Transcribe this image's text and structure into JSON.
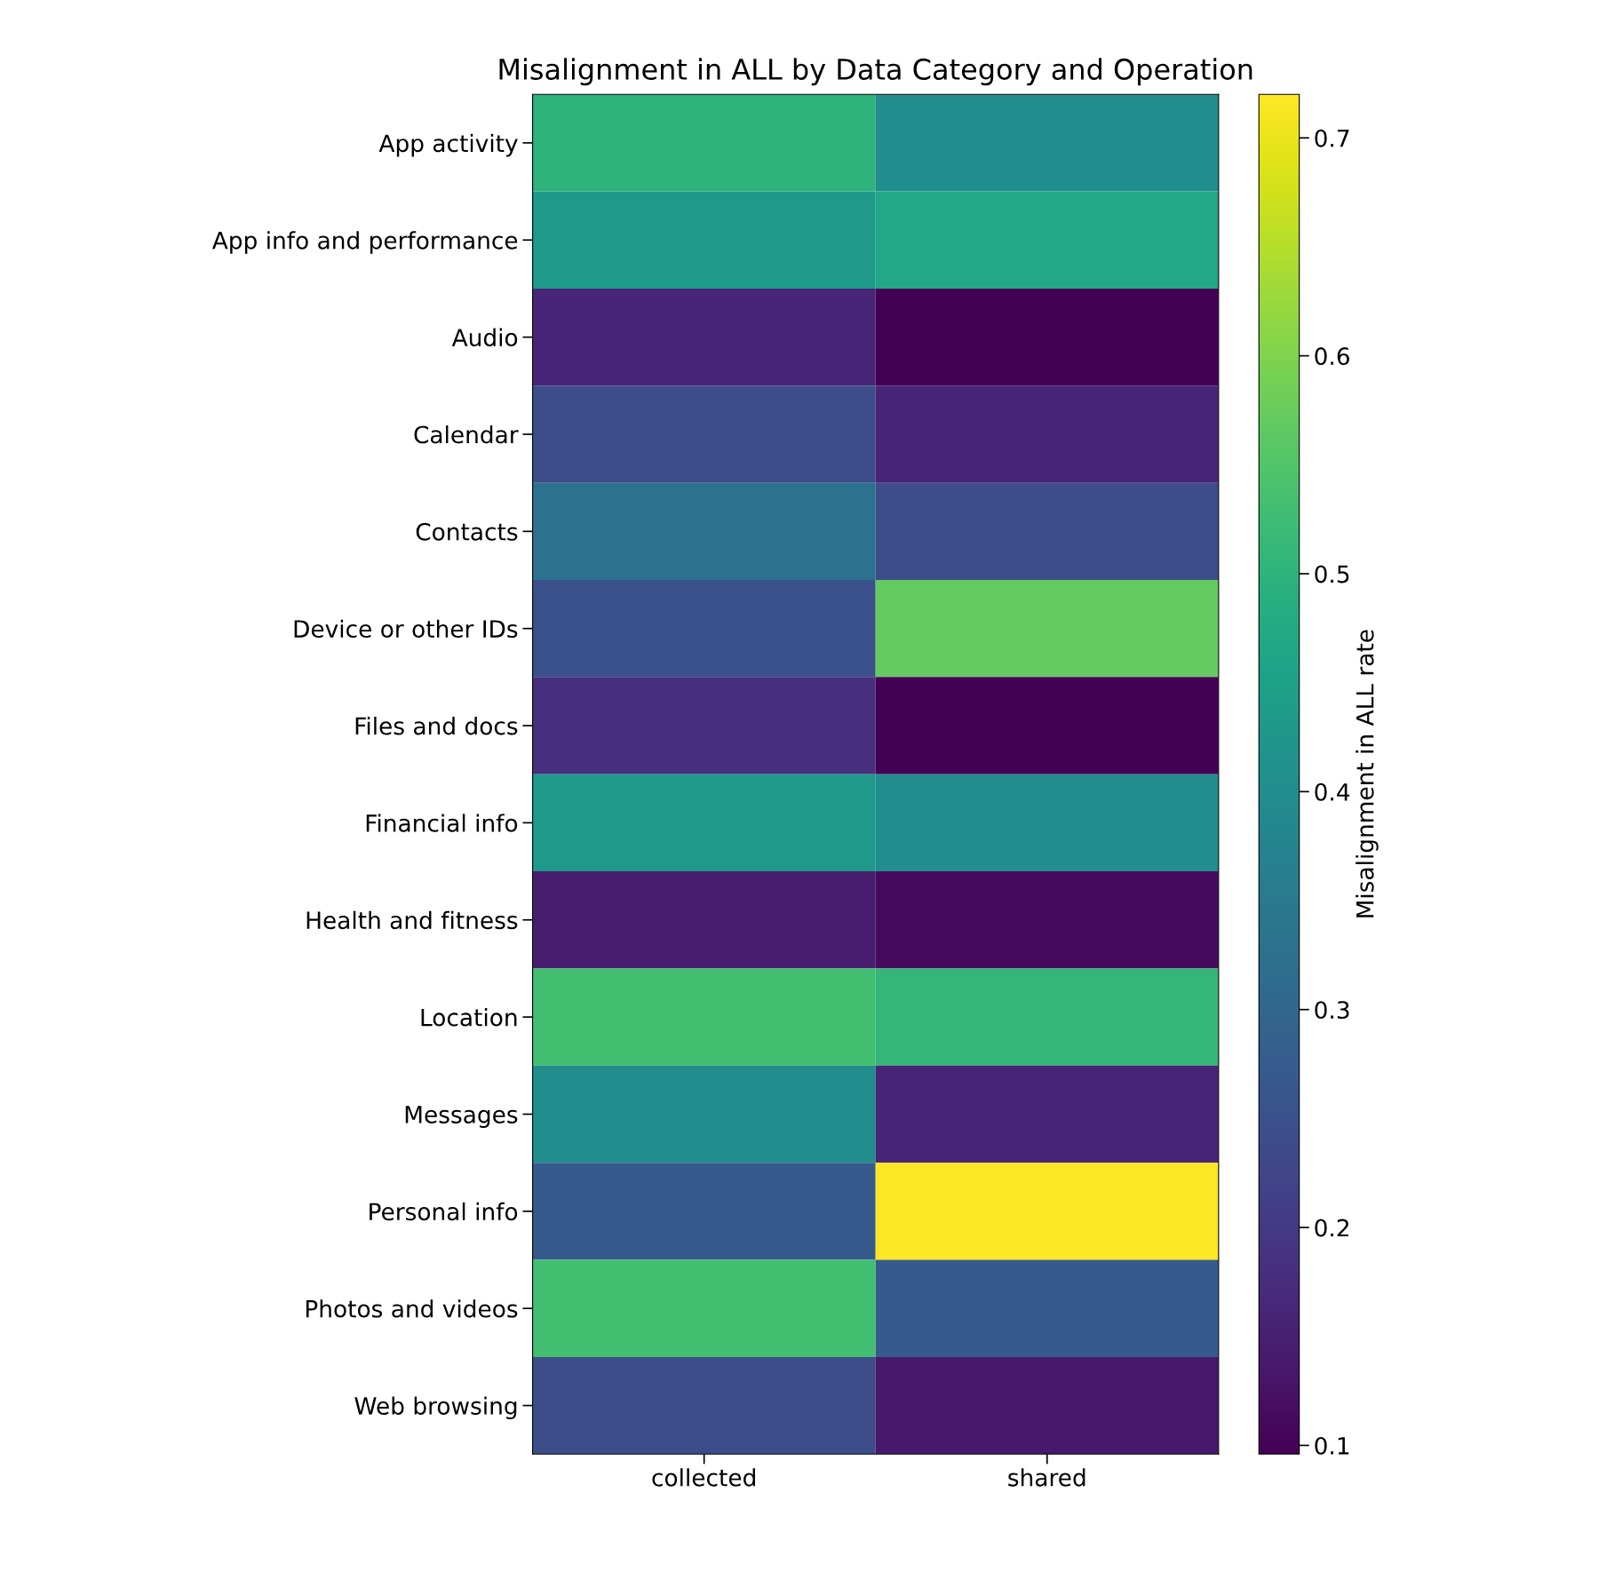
{
  "chart_data": {
    "type": "heatmap",
    "title": "Misalignment in ALL by Data Category and Operation",
    "clabel": "Misalignment in ALL rate",
    "categories": [
      "collected",
      "shared"
    ],
    "y_categories": [
      "App activity",
      "App info and performance",
      "Audio",
      "Calendar",
      "Contacts",
      "Device or other IDs",
      "Files and docs",
      "Financial info",
      "Health and fitness",
      "Location",
      "Messages",
      "Personal info",
      "Photos and videos",
      "Web browsing"
    ],
    "cells": [
      [
        0.5,
        0.4
      ],
      [
        0.43,
        0.47
      ],
      [
        0.16,
        0.096
      ],
      [
        0.24,
        0.16
      ],
      [
        0.33,
        0.24
      ],
      [
        0.25,
        0.57
      ],
      [
        0.18,
        0.096
      ],
      [
        0.43,
        0.4
      ],
      [
        0.145,
        0.115
      ],
      [
        0.53,
        0.51
      ],
      [
        0.4,
        0.16
      ],
      [
        0.27,
        0.72
      ],
      [
        0.53,
        0.27
      ],
      [
        0.24,
        0.135
      ]
    ],
    "clim": [
      0.096,
      0.72
    ],
    "cticks": [
      0.1,
      0.2,
      0.3,
      0.4,
      0.5,
      0.6,
      0.7
    ]
  }
}
